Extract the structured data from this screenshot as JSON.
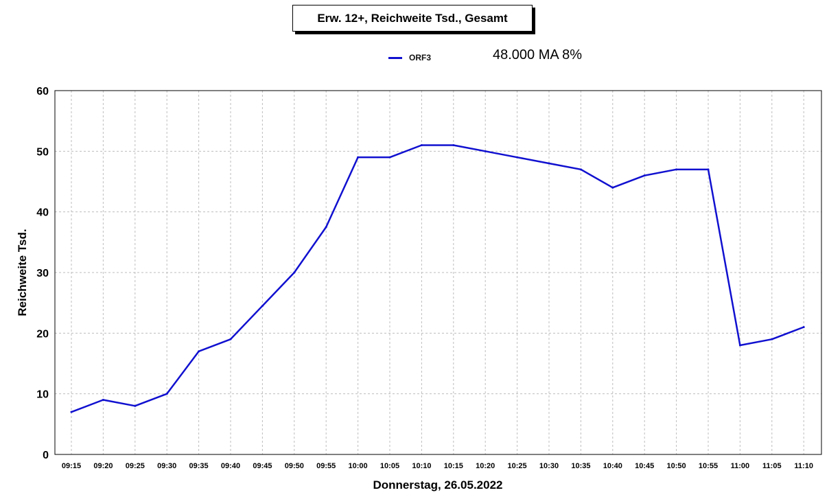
{
  "chart_data": {
    "type": "line",
    "title": "Erw. 12+, Reichweite Tsd., Gesamt",
    "annotation": "48.000   MA 8%",
    "xlabel": "Donnerstag, 26.05.2022",
    "ylabel": "Reichweite Tsd.",
    "ylim": [
      0,
      60
    ],
    "yticks": [
      "0",
      "10",
      "20",
      "30",
      "40",
      "50",
      "60"
    ],
    "grid": true,
    "legend_position": "top-center",
    "categories": [
      "09:15",
      "09:20",
      "09:25",
      "09:30",
      "09:35",
      "09:40",
      "09:45",
      "09:50",
      "09:55",
      "10:00",
      "10:05",
      "10:10",
      "10:15",
      "10:20",
      "10:25",
      "10:30",
      "10:35",
      "10:40",
      "10:45",
      "10:50",
      "10:55",
      "11:00",
      "11:05",
      "11:10"
    ],
    "series": [
      {
        "name": "ORF3",
        "color": "#1010d0",
        "values": [
          7,
          9,
          8,
          10,
          17,
          19,
          24.5,
          30,
          37.5,
          49,
          49,
          51,
          51,
          50,
          49,
          48,
          47,
          44,
          46,
          47,
          47,
          18,
          19,
          21
        ]
      }
    ]
  }
}
